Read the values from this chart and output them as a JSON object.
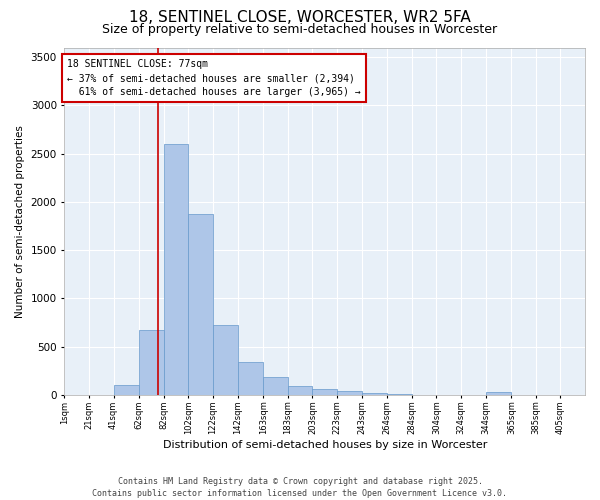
{
  "title1": "18, SENTINEL CLOSE, WORCESTER, WR2 5FA",
  "title2": "Size of property relative to semi-detached houses in Worcester",
  "xlabel": "Distribution of semi-detached houses by size in Worcester",
  "ylabel": "Number of semi-detached properties",
  "bar_left_edges": [
    1,
    21,
    41,
    62,
    82,
    102,
    122,
    142,
    163,
    183,
    203,
    223,
    243,
    264,
    284,
    304,
    324,
    344,
    365,
    385
  ],
  "bar_widths": [
    20,
    20,
    21,
    20,
    20,
    20,
    20,
    21,
    20,
    20,
    20,
    20,
    21,
    20,
    20,
    20,
    20,
    21,
    20,
    20
  ],
  "bar_heights": [
    0,
    0,
    100,
    670,
    2600,
    1870,
    730,
    340,
    190,
    90,
    60,
    40,
    20,
    10,
    5,
    2,
    0,
    30,
    0,
    0
  ],
  "bar_color": "#aec6e8",
  "bar_edge_color": "#6699cc",
  "vline_x": 77,
  "vline_color": "#cc0000",
  "annotation_text": "18 SENTINEL CLOSE: 77sqm\n← 37% of semi-detached houses are smaller (2,394)\n  61% of semi-detached houses are larger (3,965) →",
  "annotation_box_color": "white",
  "annotation_box_edge": "#cc0000",
  "ylim": [
    0,
    3600
  ],
  "yticks": [
    0,
    500,
    1000,
    1500,
    2000,
    2500,
    3000,
    3500
  ],
  "tick_labels": [
    "1sqm",
    "21sqm",
    "41sqm",
    "62sqm",
    "82sqm",
    "102sqm",
    "122sqm",
    "142sqm",
    "163sqm",
    "183sqm",
    "203sqm",
    "223sqm",
    "243sqm",
    "264sqm",
    "284sqm",
    "304sqm",
    "324sqm",
    "344sqm",
    "365sqm",
    "385sqm",
    "405sqm"
  ],
  "bg_color": "#e8f0f8",
  "footer": "Contains HM Land Registry data © Crown copyright and database right 2025.\nContains public sector information licensed under the Open Government Licence v3.0.",
  "title1_fontsize": 11,
  "title2_fontsize": 9,
  "xlim_left": 1,
  "xlim_right": 425
}
